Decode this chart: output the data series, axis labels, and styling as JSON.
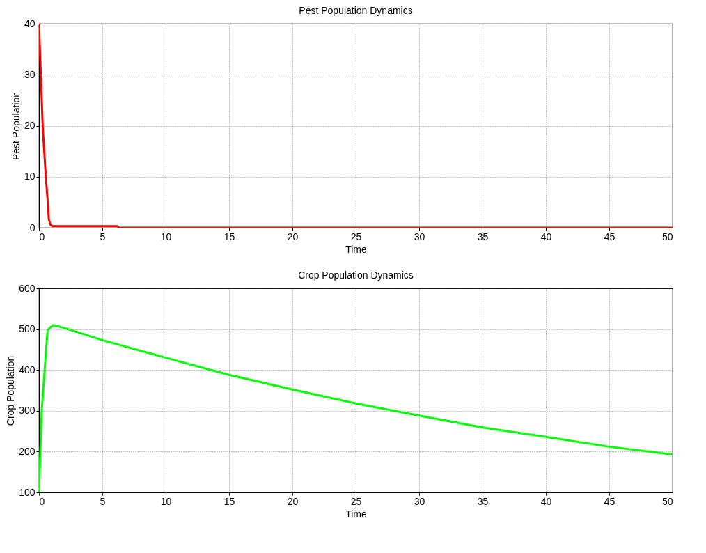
{
  "chart_data": [
    {
      "type": "line",
      "title": "Pest Population Dynamics",
      "xlabel": "Time",
      "ylabel": "Pest Population",
      "x": [
        0,
        0.3,
        0.54,
        0.68,
        0.78,
        0.9,
        1.06,
        3,
        6.2,
        6.3,
        10,
        20,
        30,
        40,
        50
      ],
      "series": [
        {
          "color": "#ff0000",
          "values": [
            40,
            19.6,
            10,
            5.5,
            1.6,
            0.6,
            0.3,
            0.3,
            0.3,
            0,
            0,
            0,
            0,
            0,
            0
          ]
        }
      ],
      "xlim": [
        0,
        50
      ],
      "ylim": [
        0,
        40
      ],
      "xticks": [
        0,
        5,
        10,
        15,
        20,
        25,
        30,
        35,
        40,
        45,
        50
      ],
      "yticks": [
        0,
        10,
        20,
        30,
        40
      ],
      "grid": true
    },
    {
      "type": "line",
      "title": "Crop Population Dynamics",
      "xlabel": "Time",
      "ylabel": "Crop Population",
      "x": [
        0,
        0.22,
        0.68,
        1.11,
        2,
        5,
        10,
        15,
        20,
        25,
        30,
        35,
        40,
        45,
        50
      ],
      "series": [
        {
          "color": "#00ff00",
          "values": [
            100,
            302,
            498,
            510,
            503,
            473,
            430,
            388,
            352,
            318,
            288,
            259,
            236,
            212,
            193
          ]
        }
      ],
      "xlim": [
        0,
        50
      ],
      "ylim": [
        100,
        600
      ],
      "xticks": [
        0,
        5,
        10,
        15,
        20,
        25,
        30,
        35,
        40,
        45,
        50
      ],
      "yticks": [
        100,
        200,
        300,
        400,
        500,
        600
      ],
      "grid": true
    }
  ]
}
